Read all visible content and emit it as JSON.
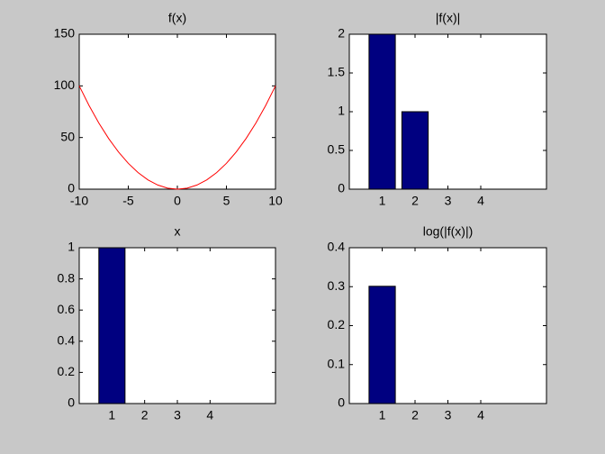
{
  "chart_data": [
    {
      "type": "line",
      "title": "f(x)",
      "color": "#ff0000",
      "x": [
        -10,
        -9,
        -8,
        -7,
        -6,
        -5,
        -4,
        -3,
        -2,
        -1,
        0,
        1,
        2,
        3,
        4,
        5,
        6,
        7,
        8,
        9,
        10
      ],
      "values": [
        100,
        81,
        64,
        49,
        36,
        25,
        16,
        9,
        4,
        1,
        0,
        1,
        4,
        9,
        16,
        25,
        36,
        49,
        64,
        81,
        100
      ],
      "xlim": [
        -10,
        10
      ],
      "xticks": [
        -10,
        -5,
        0,
        5,
        10
      ],
      "ylim": [
        0,
        150
      ],
      "yticks": [
        0,
        50,
        100,
        150
      ]
    },
    {
      "type": "bar",
      "title": "|f(x)|",
      "color": "#000080",
      "x": [
        1,
        2,
        3,
        4
      ],
      "values": [
        2,
        1,
        0,
        0
      ],
      "xlim": [
        0,
        6
      ],
      "xticks": [
        1,
        2,
        3,
        4
      ],
      "ylim": [
        0,
        2
      ],
      "yticks": [
        0,
        0.5,
        1,
        1.5,
        2
      ]
    },
    {
      "type": "bar",
      "title": "x",
      "color": "#000080",
      "x": [
        1,
        2,
        3,
        4
      ],
      "values": [
        1,
        0,
        0,
        0
      ],
      "xlim": [
        0,
        6
      ],
      "xticks": [
        1,
        2,
        3,
        4
      ],
      "ylim": [
        0,
        1
      ],
      "yticks": [
        0,
        0.2,
        0.4,
        0.6,
        0.8,
        1
      ]
    },
    {
      "type": "bar",
      "title": "log(|f(x)|)",
      "color": "#000080",
      "x": [
        1,
        2,
        3,
        4
      ],
      "values": [
        0.301,
        0,
        0,
        0
      ],
      "xlim": [
        0,
        6
      ],
      "xticks": [
        1,
        2,
        3,
        4
      ],
      "ylim": [
        0,
        0.4
      ],
      "yticks": [
        0,
        0.1,
        0.2,
        0.3,
        0.4
      ]
    }
  ]
}
